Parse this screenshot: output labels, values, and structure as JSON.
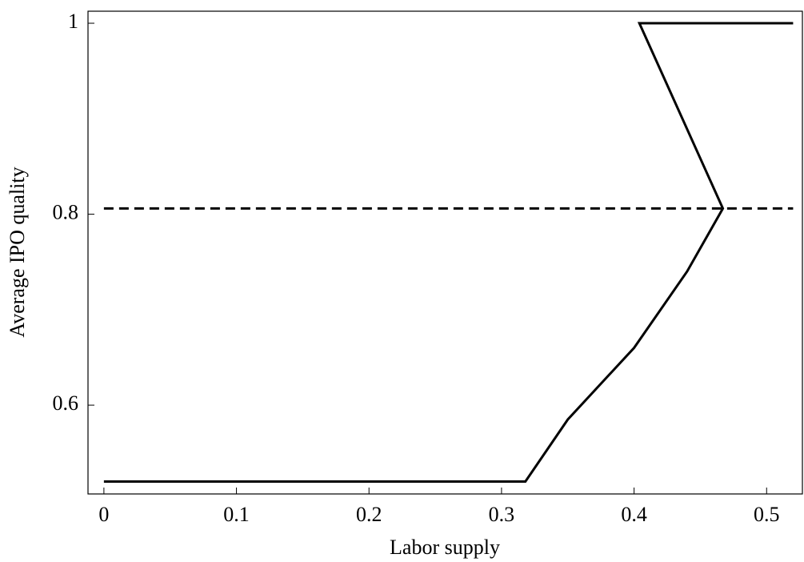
{
  "chart_data": {
    "type": "line",
    "x_label": "Labor supply",
    "y_label": "Average IPO quality",
    "xlim": [
      -0.012,
      0.527
    ],
    "ylim": [
      0.507,
      1.0126
    ],
    "xticks": [
      0,
      0.1,
      0.2,
      0.3,
      0.4,
      0.5
    ],
    "yticks": [
      0.6,
      0.8,
      1
    ],
    "series": [
      {
        "color": "#000000",
        "dash": false,
        "x": [
          0,
          0.318,
          0.35,
          0.4,
          0.44,
          0.467,
          0.404,
          0.52
        ],
        "values": [
          0.52,
          0.52,
          0.585,
          0.66,
          0.74,
          0.806,
          1.0,
          1.0
        ]
      },
      {
        "color": "#000000",
        "dash": true,
        "x": [
          0,
          0.52
        ],
        "values": [
          0.806,
          0.806
        ]
      }
    ]
  }
}
